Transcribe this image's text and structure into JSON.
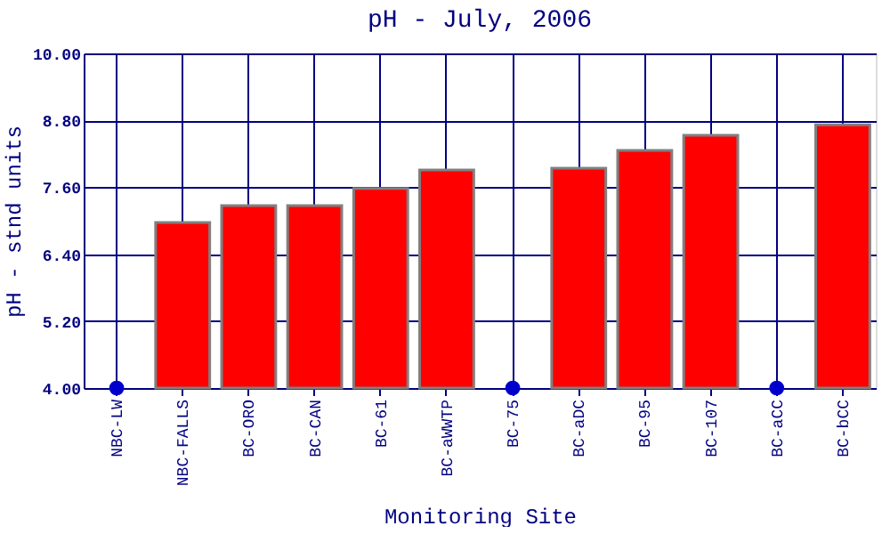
{
  "chart_data": {
    "type": "bar",
    "title": "pH - July, 2006",
    "xlabel": "Monitoring Site",
    "ylabel": "pH - stnd units",
    "categories": [
      "NBC-LW",
      "NBC-FALLS",
      "BC-ORO",
      "BC-CAN",
      "BC-61",
      "BC-aWWTP",
      "BC-75",
      "BC-aDC",
      "BC-95",
      "BC-107",
      "BC-aCC",
      "BC-bCC"
    ],
    "series": [
      {
        "type": "bar",
        "color": "#ff0000",
        "values": [
          null,
          6.97,
          7.27,
          7.27,
          7.58,
          7.91,
          null,
          7.94,
          8.26,
          8.53,
          null,
          8.72
        ]
      },
      {
        "type": "scatter",
        "color": "#0000cc",
        "marker": "circle",
        "values": [
          4.0,
          null,
          null,
          null,
          null,
          null,
          4.0,
          null,
          null,
          null,
          4.0,
          null
        ]
      }
    ],
    "ylim": [
      4.0,
      10.0
    ],
    "yticks": [
      {
        "value": 4.0,
        "label": "4.00"
      },
      {
        "value": 5.2,
        "label": "5.20"
      },
      {
        "value": 6.4,
        "label": "6.40"
      },
      {
        "value": 7.6,
        "label": "7.60"
      },
      {
        "value": 8.8,
        "label": "8.80"
      },
      {
        "value": 10.0,
        "label": "10.00"
      }
    ],
    "grid": true
  }
}
